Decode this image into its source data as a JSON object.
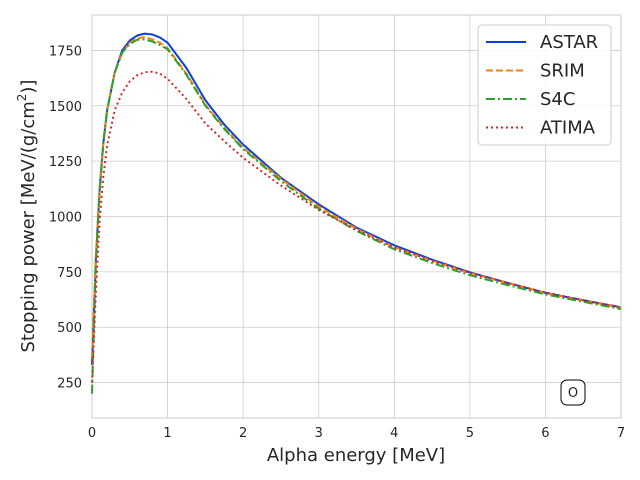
{
  "chart_data": {
    "type": "line",
    "title": "",
    "xlabel": "Alpha energy [MeV]",
    "ylabel_main": "Stopping power [MeV/(g/cm",
    "ylabel_sup": "2",
    "ylabel_tail": ")]",
    "xlim": [
      0,
      7
    ],
    "ylim": [
      90,
      1910
    ],
    "xticks": [
      0,
      1,
      2,
      3,
      4,
      5,
      6,
      7
    ],
    "yticks": [
      250,
      500,
      750,
      1000,
      1250,
      1500,
      1750
    ],
    "grid": true,
    "legend_position": "top-right",
    "annotation": "O",
    "series": [
      {
        "name": "ASTAR",
        "color": "#0b3fe0",
        "dash": "solid",
        "x": [
          0.0,
          0.05,
          0.1,
          0.15,
          0.2,
          0.3,
          0.4,
          0.5,
          0.6,
          0.7,
          0.8,
          0.9,
          1.0,
          1.25,
          1.5,
          1.75,
          2.0,
          2.5,
          3.0,
          3.5,
          4.0,
          4.5,
          5.0,
          5.5,
          6.0,
          6.5,
          7.0
        ],
        "y": [
          330,
          800,
          1120,
          1330,
          1480,
          1650,
          1750,
          1795,
          1818,
          1826,
          1822,
          1808,
          1785,
          1670,
          1525,
          1415,
          1325,
          1175,
          1055,
          950,
          870,
          805,
          748,
          700,
          655,
          622,
          590
        ]
      },
      {
        "name": "SRIM",
        "color": "#ff7f0e",
        "dash": "dashed",
        "x": [
          0.0,
          0.05,
          0.1,
          0.15,
          0.2,
          0.3,
          0.4,
          0.5,
          0.6,
          0.7,
          0.8,
          0.9,
          1.0,
          1.25,
          1.5,
          1.75,
          2.0,
          2.5,
          3.0,
          3.5,
          4.0,
          4.5,
          5.0,
          5.5,
          6.0,
          6.5,
          7.0
        ],
        "y": [
          360,
          820,
          1130,
          1340,
          1480,
          1650,
          1740,
          1785,
          1805,
          1810,
          1800,
          1785,
          1760,
          1645,
          1505,
          1400,
          1310,
          1170,
          1045,
          945,
          862,
          800,
          745,
          700,
          656,
          620,
          588
        ]
      },
      {
        "name": "S4C",
        "color": "#2ca02c",
        "dash": "dashdot",
        "x": [
          0.0,
          0.05,
          0.1,
          0.15,
          0.2,
          0.3,
          0.4,
          0.5,
          0.6,
          0.7,
          0.8,
          0.9,
          1.0,
          1.25,
          1.5,
          1.75,
          2.0,
          2.5,
          3.0,
          3.5,
          4.0,
          4.5,
          5.0,
          5.5,
          6.0,
          6.5,
          7.0
        ],
        "y": [
          200,
          780,
          1110,
          1330,
          1480,
          1650,
          1740,
          1780,
          1798,
          1800,
          1790,
          1775,
          1755,
          1640,
          1500,
          1395,
          1305,
          1160,
          1035,
          935,
          852,
          790,
          735,
          690,
          648,
          615,
          582
        ]
      },
      {
        "name": "ATIMA",
        "color": "#d62728",
        "dash": "dotted",
        "x": [
          0.0,
          0.05,
          0.1,
          0.15,
          0.2,
          0.3,
          0.4,
          0.5,
          0.6,
          0.7,
          0.8,
          0.9,
          1.0,
          1.25,
          1.5,
          1.75,
          2.0,
          2.5,
          3.0,
          3.5,
          4.0,
          4.5,
          5.0,
          5.5,
          6.0,
          6.5,
          7.0
        ],
        "y": [
          250,
          650,
          980,
          1180,
          1320,
          1480,
          1560,
          1610,
          1638,
          1652,
          1654,
          1645,
          1622,
          1530,
          1420,
          1340,
          1265,
          1140,
          1030,
          940,
          860,
          800,
          745,
          700,
          657,
          622,
          590
        ]
      }
    ]
  }
}
